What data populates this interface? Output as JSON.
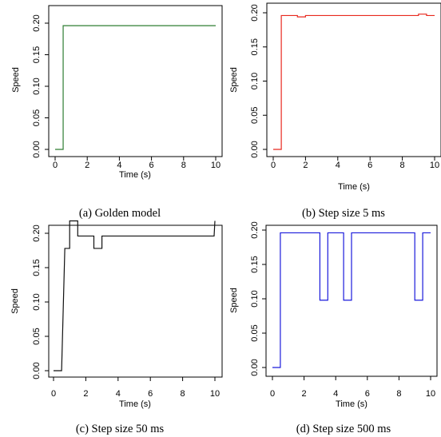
{
  "chart_data": [
    {
      "type": "line",
      "caption": "(a) Golden model",
      "xlabel": "Time (s)",
      "ylabel": "Speed",
      "xlim": [
        0,
        10
      ],
      "ylim": [
        0,
        0.2
      ],
      "x_ticks": [
        "0",
        "2",
        "4",
        "6",
        "8",
        "10"
      ],
      "y_ticks": [
        "0.00",
        "0.05",
        "0.10",
        "0.15",
        "0.20"
      ],
      "grid": false,
      "series": [
        {
          "color": "#2e7d32",
          "x": [
            0,
            0.5,
            0.5,
            10
          ],
          "y": [
            0,
            0,
            0.196,
            0.196
          ]
        }
      ]
    },
    {
      "type": "line",
      "caption": "(b) Step size 5 ms",
      "xlabel": "Time (s)",
      "ylabel": "Speed",
      "xlim": [
        0,
        10
      ],
      "ylim": [
        0,
        0.2
      ],
      "x_ticks": [
        "0",
        "2",
        "4",
        "6",
        "8",
        "10"
      ],
      "y_ticks": [
        "0.00",
        "0.05",
        "0.10",
        "0.15",
        "0.20"
      ],
      "grid": false,
      "series": [
        {
          "color": "#e8281e",
          "x": [
            0,
            0.5,
            0.5,
            1.5,
            1.5,
            2.0,
            2.0,
            9.0,
            9.0,
            9.5,
            9.5,
            10
          ],
          "y": [
            0,
            0,
            0.196,
            0.196,
            0.194,
            0.194,
            0.196,
            0.196,
            0.198,
            0.198,
            0.196,
            0.196
          ]
        }
      ]
    },
    {
      "type": "line",
      "caption": "(c) Step size 50 ms",
      "xlabel": "Time (s)",
      "ylabel": "Speed",
      "xlim": [
        0,
        10
      ],
      "ylim": [
        0,
        0.22
      ],
      "x_ticks": [
        "0",
        "2",
        "4",
        "6",
        "8",
        "10"
      ],
      "y_ticks": [
        "0.00",
        "0.05",
        "0.10",
        "0.15",
        "0.20"
      ],
      "grid": false,
      "series": [
        {
          "color": "#111111",
          "x": [
            0,
            0.5,
            0.7,
            1.0,
            1.0,
            1.5,
            1.5,
            2.5,
            2.5,
            3.0,
            3.0,
            9.95,
            10
          ],
          "y": [
            0,
            0,
            0.178,
            0.178,
            0.218,
            0.218,
            0.196,
            0.196,
            0.178,
            0.178,
            0.196,
            0.196,
            0.218
          ]
        }
      ]
    },
    {
      "type": "line",
      "caption": "(d) Step size 500 ms",
      "xlabel": "Time (s)",
      "ylabel": "Speed",
      "xlim": [
        0,
        10
      ],
      "ylim": [
        0,
        0.2
      ],
      "x_ticks": [
        "0",
        "2",
        "4",
        "6",
        "8",
        "10"
      ],
      "y_ticks": [
        "0.00",
        "0.05",
        "0.10",
        "0.15",
        "0.20"
      ],
      "grid": false,
      "series": [
        {
          "color": "#1a1adb",
          "x": [
            0,
            0.5,
            0.5,
            3.0,
            3.0,
            3.5,
            3.5,
            4.5,
            4.5,
            5.0,
            5.0,
            9.0,
            9.0,
            9.5,
            9.5,
            10
          ],
          "y": [
            0,
            0,
            0.196,
            0.196,
            0.098,
            0.098,
            0.196,
            0.196,
            0.098,
            0.098,
            0.196,
            0.196,
            0.098,
            0.098,
            0.196,
            0.196
          ]
        }
      ]
    }
  ]
}
